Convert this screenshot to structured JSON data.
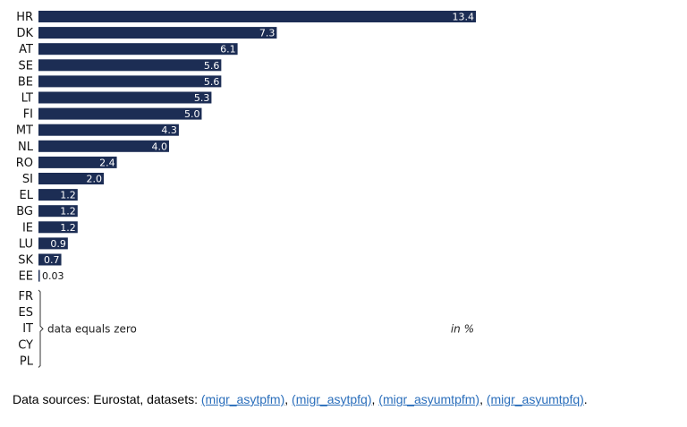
{
  "chart_data": {
    "type": "bar",
    "orientation": "horizontal",
    "categories": [
      "HR",
      "DK",
      "AT",
      "SE",
      "BE",
      "LT",
      "FI",
      "MT",
      "NL",
      "RO",
      "SI",
      "EL",
      "BG",
      "IE",
      "LU",
      "SK",
      "EE"
    ],
    "values": [
      13.4,
      7.3,
      6.1,
      5.6,
      5.6,
      5.3,
      5.0,
      4.3,
      4.0,
      2.4,
      2.0,
      1.2,
      1.2,
      1.2,
      0.9,
      0.7,
      0.03
    ],
    "value_labels": [
      "13.4",
      "7.3",
      "6.1",
      "5.6",
      "5.6",
      "5.3",
      "5.0",
      "4.3",
      "4.0",
      "2.4",
      "2.0",
      "1.2",
      "1.2",
      "1.2",
      "0.9",
      "0.7",
      "0.03"
    ],
    "zero_categories": [
      "FR",
      "ES",
      "IT",
      "CY",
      "PL"
    ],
    "zero_note": "data equals zero",
    "unit_note": "in %",
    "title": "",
    "xlabel": "",
    "ylabel": "",
    "xlim": [
      0,
      13.4
    ],
    "grid": false,
    "bar_color": "#1c2d54"
  },
  "footer": {
    "prefix": "Data sources: Eurostat, datasets: ",
    "links": [
      "(migr_asytpfm)",
      "(migr_asytpfq)",
      "(migr_asyumtpfm)",
      "(migr_asyumtpfq)"
    ],
    "separator": ", ",
    "suffix": "."
  }
}
